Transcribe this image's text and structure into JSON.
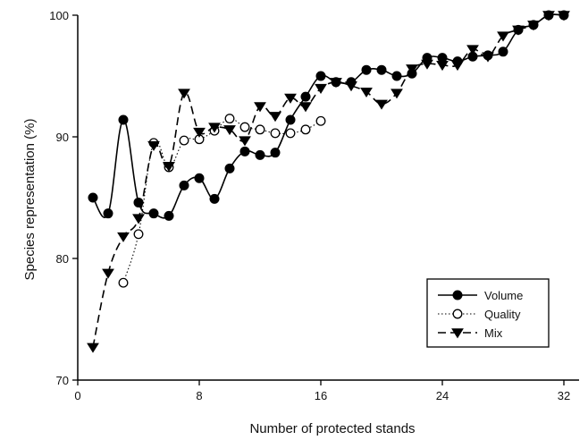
{
  "chart_data": {
    "type": "line",
    "xlabel": "Number of protected stands",
    "ylabel": "Species representation (%)",
    "xlim": [
      0,
      33
    ],
    "ylim": [
      70,
      100
    ],
    "xticks": [
      0,
      8,
      16,
      24,
      32
    ],
    "yticks": [
      70,
      80,
      90,
      100
    ],
    "grid": false,
    "legend_position": "bottom-right",
    "series": [
      {
        "name": "Volume",
        "marker": "filled-circle",
        "line": "solid",
        "x": [
          1,
          2,
          3,
          4,
          5,
          6,
          7,
          8,
          9,
          10,
          11,
          12,
          13,
          14,
          15,
          16,
          17,
          18,
          19,
          20,
          21,
          22,
          23,
          24,
          25,
          26,
          27,
          28,
          29,
          30,
          31,
          32
        ],
        "y": [
          85.0,
          83.7,
          91.4,
          84.6,
          83.7,
          83.5,
          86.0,
          86.6,
          84.9,
          87.4,
          88.8,
          88.5,
          88.7,
          91.4,
          93.3,
          95.0,
          94.5,
          94.5,
          95.5,
          95.5,
          95.0,
          95.2,
          96.5,
          96.5,
          96.2,
          96.6,
          96.7,
          97.0,
          98.8,
          99.2,
          100.0,
          100.0
        ]
      },
      {
        "name": "Quality",
        "marker": "open-circle",
        "line": "dotted",
        "x": [
          3,
          4,
          5,
          6,
          7,
          8,
          9,
          10,
          11,
          12,
          13,
          14,
          15,
          16
        ],
        "y": [
          78.0,
          82.0,
          89.5,
          87.5,
          89.7,
          89.8,
          90.5,
          91.5,
          90.8,
          90.6,
          90.3,
          90.3,
          90.6,
          91.3
        ]
      },
      {
        "name": "Mix",
        "marker": "filled-down-triangle",
        "line": "dashed",
        "x": [
          1,
          2,
          3,
          4,
          5,
          6,
          7,
          8,
          9,
          10,
          11,
          12,
          13,
          14,
          15,
          16,
          17,
          18,
          19,
          20,
          21,
          22,
          23,
          24,
          25,
          26,
          27,
          28,
          29,
          30,
          31,
          32
        ],
        "y": [
          72.7,
          78.8,
          81.8,
          83.3,
          89.3,
          87.6,
          93.6,
          90.4,
          90.8,
          90.6,
          89.7,
          92.5,
          91.7,
          93.2,
          92.5,
          94.0,
          94.5,
          94.2,
          93.7,
          92.7,
          93.6,
          95.6,
          96.0,
          95.9,
          95.9,
          97.2,
          96.6,
          98.3,
          98.8,
          99.2,
          100.0,
          100.0
        ]
      }
    ]
  }
}
